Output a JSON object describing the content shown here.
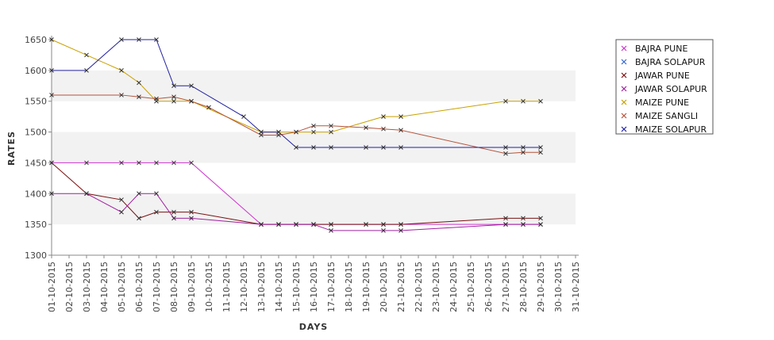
{
  "chart_data": {
    "type": "line",
    "xlabel": "DAYS",
    "ylabel": "RATES",
    "ylim": [
      1300,
      1650
    ],
    "yticks": [
      1300,
      1350,
      1400,
      1450,
      1500,
      1550,
      1600,
      1650
    ],
    "grid": "alternating horizontal bands",
    "legend_position": "top-right",
    "categories": [
      "01-10-2015",
      "02-10-2015",
      "03-10-2015",
      "04-10-2015",
      "05-10-2015",
      "06-10-2015",
      "07-10-2015",
      "08-10-2015",
      "09-10-2015",
      "10-10-2015",
      "11-10-2015",
      "12-10-2015",
      "13-10-2015",
      "14-10-2015",
      "15-10-2015",
      "16-10-2015",
      "17-10-2015",
      "18-10-2015",
      "19-10-2015",
      "20-10-2015",
      "21-10-2015",
      "22-10-2015",
      "23-10-2015",
      "24-10-2015",
      "25-10-2015",
      "26-10-2015",
      "27-10-2015",
      "28-10-2015",
      "29-10-2015",
      "30-10-2015",
      "31-10-2015"
    ],
    "series": [
      {
        "name": "BAJRA PUNE",
        "color": "#cc33cc",
        "points": [
          [
            1,
            1450
          ],
          [
            3,
            1450
          ],
          [
            5,
            1450
          ],
          [
            6,
            1450
          ],
          [
            7,
            1450
          ],
          [
            8,
            1450
          ],
          [
            9,
            1450
          ],
          [
            13,
            1350
          ],
          [
            14,
            1350
          ],
          [
            15,
            1350
          ],
          [
            16,
            1350
          ],
          [
            17,
            1350
          ],
          [
            19,
            1350
          ],
          [
            20,
            1350
          ],
          [
            21,
            1350
          ],
          [
            27,
            1350
          ],
          [
            28,
            1350
          ],
          [
            29,
            1350
          ]
        ]
      },
      {
        "name": "BAJRA SOLAPUR",
        "color": "#3366cc",
        "points": []
      },
      {
        "name": "JAWAR PUNE",
        "color": "#7a1010",
        "points": [
          [
            1,
            1450
          ],
          [
            3,
            1400
          ],
          [
            5,
            1390
          ],
          [
            6,
            1360
          ],
          [
            7,
            1370
          ],
          [
            8,
            1370
          ],
          [
            9,
            1370
          ],
          [
            13,
            1350
          ],
          [
            14,
            1350
          ],
          [
            15,
            1350
          ],
          [
            16,
            1350
          ],
          [
            17,
            1350
          ],
          [
            19,
            1350
          ],
          [
            20,
            1350
          ],
          [
            21,
            1350
          ],
          [
            27,
            1360
          ],
          [
            28,
            1360
          ],
          [
            29,
            1360
          ]
        ]
      },
      {
        "name": "JAWAR SOLAPUR",
        "color": "#a020a0",
        "points": [
          [
            1,
            1400
          ],
          [
            3,
            1400
          ],
          [
            5,
            1370
          ],
          [
            6,
            1400
          ],
          [
            7,
            1400
          ],
          [
            8,
            1360
          ],
          [
            9,
            1360
          ],
          [
            13,
            1350
          ],
          [
            14,
            1350
          ],
          [
            15,
            1350
          ],
          [
            16,
            1350
          ],
          [
            17,
            1340
          ],
          [
            20,
            1340
          ],
          [
            21,
            1340
          ],
          [
            27,
            1350
          ],
          [
            28,
            1350
          ],
          [
            29,
            1350
          ]
        ]
      },
      {
        "name": "MAIZE PUNE",
        "color": "#c8a000",
        "points": [
          [
            1,
            1650
          ],
          [
            3,
            1625
          ],
          [
            5,
            1600
          ],
          [
            6,
            1580
          ],
          [
            7,
            1550
          ],
          [
            8,
            1550
          ],
          [
            9,
            1550
          ],
          [
            13,
            1500
          ],
          [
            14,
            1500
          ],
          [
            15,
            1500
          ],
          [
            16,
            1500
          ],
          [
            17,
            1500
          ],
          [
            20,
            1525
          ],
          [
            21,
            1525
          ],
          [
            27,
            1550
          ],
          [
            28,
            1550
          ],
          [
            29,
            1550
          ]
        ]
      },
      {
        "name": "MAIZE SANGLI",
        "color": "#b5533a",
        "points": [
          [
            1,
            1560
          ],
          [
            5,
            1560
          ],
          [
            6,
            1557
          ],
          [
            7,
            1554
          ],
          [
            8,
            1557
          ],
          [
            9,
            1550
          ],
          [
            10,
            1540
          ],
          [
            13,
            1495
          ],
          [
            14,
            1495
          ],
          [
            15,
            1500
          ],
          [
            16,
            1510
          ],
          [
            17,
            1510
          ],
          [
            19,
            1507
          ],
          [
            20,
            1505
          ],
          [
            21,
            1503
          ],
          [
            27,
            1465
          ],
          [
            28,
            1467
          ],
          [
            29,
            1467
          ]
        ]
      },
      {
        "name": "MAIZE SOLAPUR",
        "color": "#2020a0",
        "points": [
          [
            1,
            1600
          ],
          [
            3,
            1600
          ],
          [
            5,
            1650
          ],
          [
            6,
            1650
          ],
          [
            7,
            1650
          ],
          [
            8,
            1575
          ],
          [
            9,
            1575
          ],
          [
            12,
            1525
          ],
          [
            13,
            1500
          ],
          [
            14,
            1500
          ],
          [
            15,
            1475
          ],
          [
            16,
            1475
          ],
          [
            17,
            1475
          ],
          [
            19,
            1475
          ],
          [
            20,
            1475
          ],
          [
            21,
            1475
          ],
          [
            27,
            1475
          ],
          [
            28,
            1475
          ],
          [
            29,
            1475
          ]
        ]
      }
    ]
  }
}
